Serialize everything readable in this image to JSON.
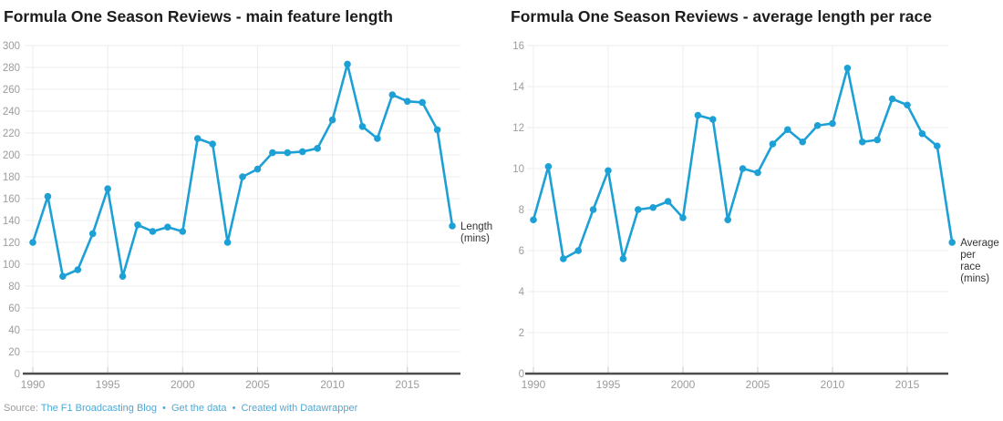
{
  "page": {
    "background": "#ffffff"
  },
  "colors": {
    "series": "#1da0d6",
    "title": "#1d1d1d",
    "axis_label": "#9c9c9c",
    "gridline": "#ececec",
    "tick": "#c9c9c9",
    "baseline": "#4d4d4d",
    "end_label": "#333333",
    "link": "#4fa8d5",
    "source_text": "#9b9b9b"
  },
  "footer": {
    "source_label": "Source:",
    "separator": "•",
    "links": [
      {
        "label": "The F1 Broadcasting Blog"
      },
      {
        "label": "Get the data"
      },
      {
        "label": "Created with Datawrapper"
      }
    ]
  },
  "chart_data": [
    {
      "type": "line",
      "title": "Formula One Season Reviews - main feature length",
      "series_label": "Length (mins)",
      "end_label_lines": [
        "Length",
        "(mins)"
      ],
      "xlabel": "",
      "ylabel": "Length (mins)",
      "ylim": [
        0,
        300
      ],
      "ytick_step": 20,
      "xticks": [
        1990,
        1995,
        2000,
        2005,
        2010,
        2015
      ],
      "grid": true,
      "legend_position": "end-of-line",
      "x": [
        1990,
        1991,
        1992,
        1993,
        1994,
        1995,
        1996,
        1997,
        1998,
        1999,
        2000,
        2001,
        2002,
        2003,
        2004,
        2005,
        2006,
        2007,
        2008,
        2009,
        2010,
        2011,
        2012,
        2013,
        2014,
        2015,
        2016,
        2017,
        2018
      ],
      "values": [
        120,
        162,
        89,
        95,
        128,
        169,
        89,
        136,
        130,
        134,
        130,
        215,
        210,
        120,
        180,
        187,
        202,
        202,
        203,
        206,
        232,
        283,
        226,
        215,
        255,
        249,
        248,
        223,
        135
      ]
    },
    {
      "type": "line",
      "title": "Formula One Season Reviews - average length per race",
      "series_label": "Average per race (mins)",
      "end_label_lines": [
        "Average",
        "per",
        "race",
        "(mins)"
      ],
      "xlabel": "",
      "ylabel": "Average per race (mins)",
      "ylim": [
        0,
        16
      ],
      "ytick_step": 2,
      "xticks": [
        1990,
        1995,
        2000,
        2005,
        2010,
        2015
      ],
      "grid": true,
      "legend_position": "end-of-line",
      "x": [
        1990,
        1991,
        1992,
        1993,
        1994,
        1995,
        1996,
        1997,
        1998,
        1999,
        2000,
        2001,
        2002,
        2003,
        2004,
        2005,
        2006,
        2007,
        2008,
        2009,
        2010,
        2011,
        2012,
        2013,
        2014,
        2015,
        2016,
        2017,
        2018
      ],
      "values": [
        7.5,
        10.1,
        5.6,
        6.0,
        8.0,
        9.9,
        5.6,
        8.0,
        8.1,
        8.4,
        7.6,
        12.6,
        12.4,
        7.5,
        10.0,
        9.8,
        11.2,
        11.9,
        11.3,
        12.1,
        12.2,
        14.9,
        11.3,
        11.4,
        13.4,
        13.1,
        11.7,
        11.1,
        6.4
      ]
    }
  ]
}
